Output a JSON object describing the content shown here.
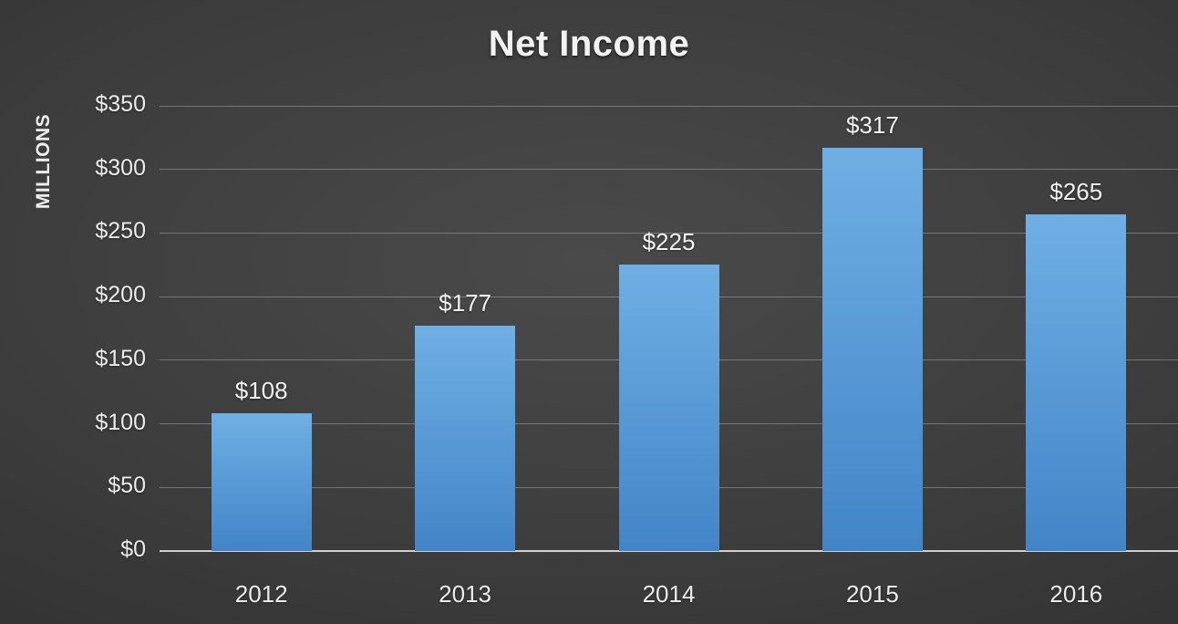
{
  "chart_data": {
    "type": "bar",
    "title": "Net Income",
    "ylabel": "MILLIONS",
    "xlabel": "",
    "categories": [
      "2012",
      "2013",
      "2014",
      "2015",
      "2016"
    ],
    "values": [
      108,
      177,
      225,
      317,
      265
    ],
    "data_labels": [
      "$108",
      "$177",
      "$225",
      "$317",
      "$265"
    ],
    "ytick_values": [
      0,
      50,
      100,
      150,
      200,
      250,
      300,
      350
    ],
    "ytick_labels": [
      "$0",
      "$50",
      "$100",
      "$150",
      "$200",
      "$250",
      "$300",
      "$350"
    ],
    "ylim": [
      0,
      350
    ],
    "grid": "horizontal",
    "legend": "none",
    "colors": {
      "bar_top": "#6fafe4",
      "bar_bottom": "#4285c7",
      "gridline": "rgba(255,255,255,0.28)",
      "axis_line": "#cfcfcf",
      "text": "#ececec",
      "background_center": "#4a4a4a",
      "background_edge": "#272727"
    }
  }
}
